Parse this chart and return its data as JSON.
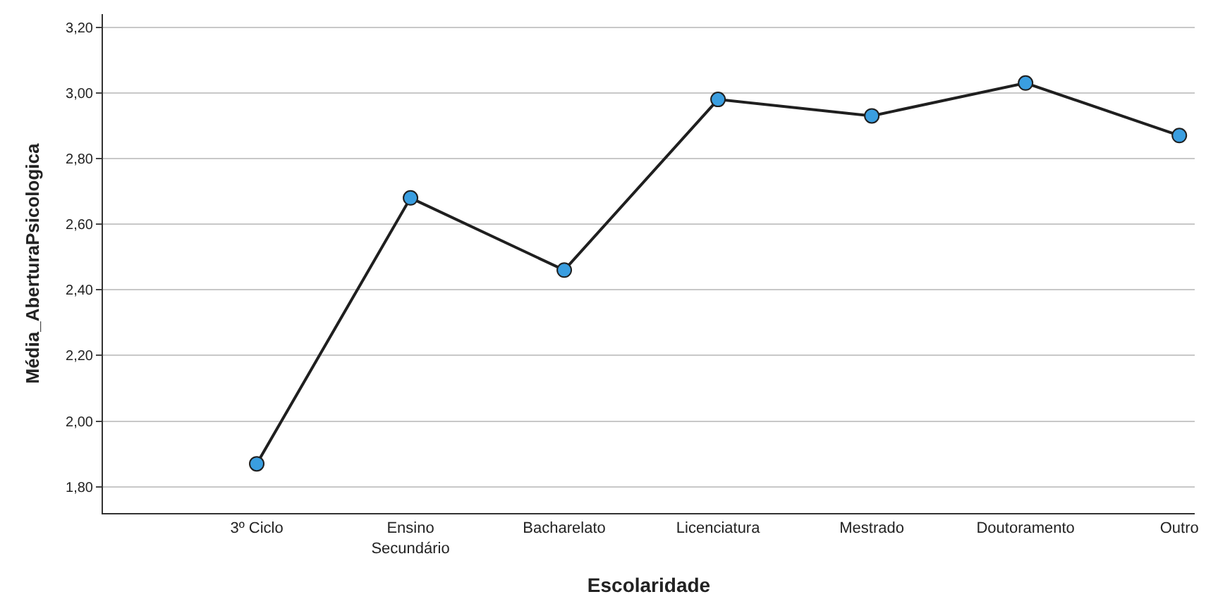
{
  "chart_data": {
    "type": "line",
    "xlabel": "Escolaridade",
    "ylabel": "Média_AberturaPsicologica",
    "categories": [
      "3º Ciclo",
      "Ensino Secundário",
      "Bacharelato",
      "Licenciatura",
      "Mestrado",
      "Doutoramento",
      "Outro"
    ],
    "series": [
      {
        "color": "#1f1f1f",
        "values": [
          1.87,
          2.68,
          2.46,
          2.98,
          2.93,
          3.03,
          2.87
        ]
      }
    ],
    "marker": "circle",
    "line_style": "solid",
    "grid": "y",
    "ylim": [
      1.72,
      3.24
    ],
    "yticks": [
      {
        "value": 1.8,
        "label": "1,80"
      },
      {
        "value": 2.0,
        "label": "2,00"
      },
      {
        "value": 2.2,
        "label": "2,20"
      },
      {
        "value": 2.4,
        "label": "2,40"
      },
      {
        "value": 2.6,
        "label": "2,60"
      },
      {
        "value": 2.8,
        "label": "2,80"
      },
      {
        "value": 3.0,
        "label": "3,00"
      },
      {
        "value": 3.2,
        "label": "3,20"
      }
    ]
  }
}
